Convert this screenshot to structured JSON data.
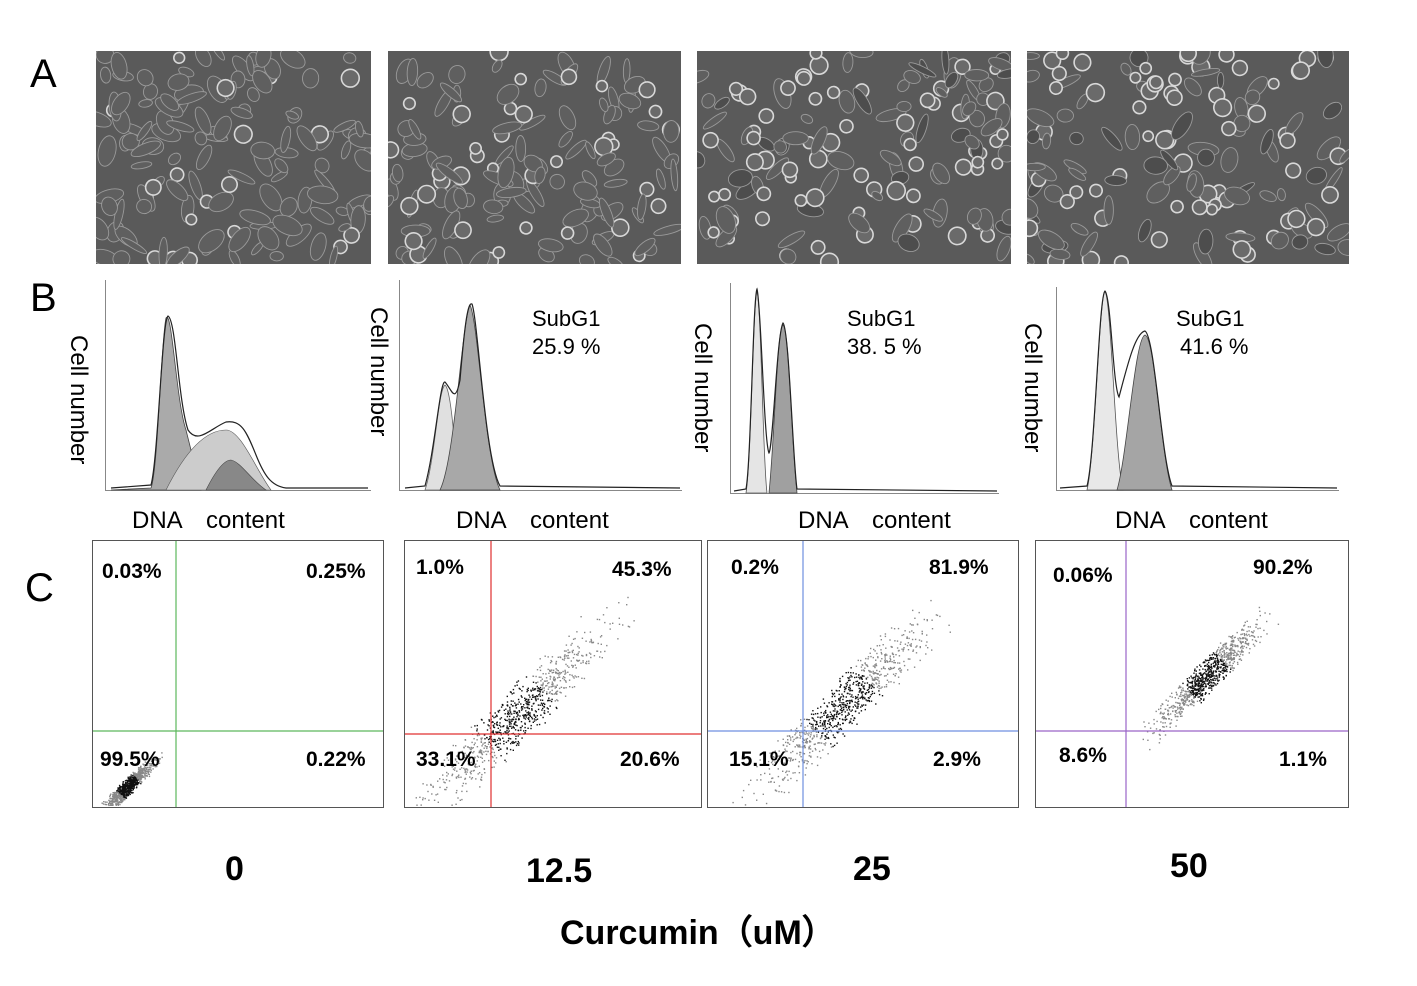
{
  "panels": {
    "a": "A",
    "b": "B",
    "c": "C"
  },
  "histograms": [
    {
      "ylabel": "Cell number",
      "xlabel": "DNA content",
      "subg1_label": "",
      "subg1_value": ""
    },
    {
      "ylabel": "Cell number",
      "xlabel": "DNA content",
      "subg1_label": "SubG1",
      "subg1_value": "25.9 %"
    },
    {
      "ylabel": "Cell number",
      "xlabel": "DNA content",
      "subg1_label": "SubG1",
      "subg1_value": "38. 5 %"
    },
    {
      "ylabel": "Cell number",
      "xlabel": "DNA content",
      "subg1_label": "SubG1",
      "subg1_value": "41.6 %"
    }
  ],
  "flow": [
    {
      "q1": "0.03%",
      "q2": "0.25%",
      "q3": "99.5%",
      "q4": "0.22%",
      "color": "#5cb85c"
    },
    {
      "q1": "1.0%",
      "q2": "45.3%",
      "q3": "33.1%",
      "q4": "20.6%",
      "color": "#e03030"
    },
    {
      "q1": "0.2%",
      "q2": "81.9%",
      "q3": "15.1%",
      "q4": "2.9%",
      "color": "#6f8fe0"
    },
    {
      "q1": "0.06%",
      "q2": "90.2%",
      "q3": "8.6%",
      "q4": "1.1%",
      "color": "#9a64c8"
    }
  ],
  "concentrations": [
    "0",
    "12.5",
    "25",
    "50"
  ],
  "xaxis_title": "Curcumin（uM）"
}
